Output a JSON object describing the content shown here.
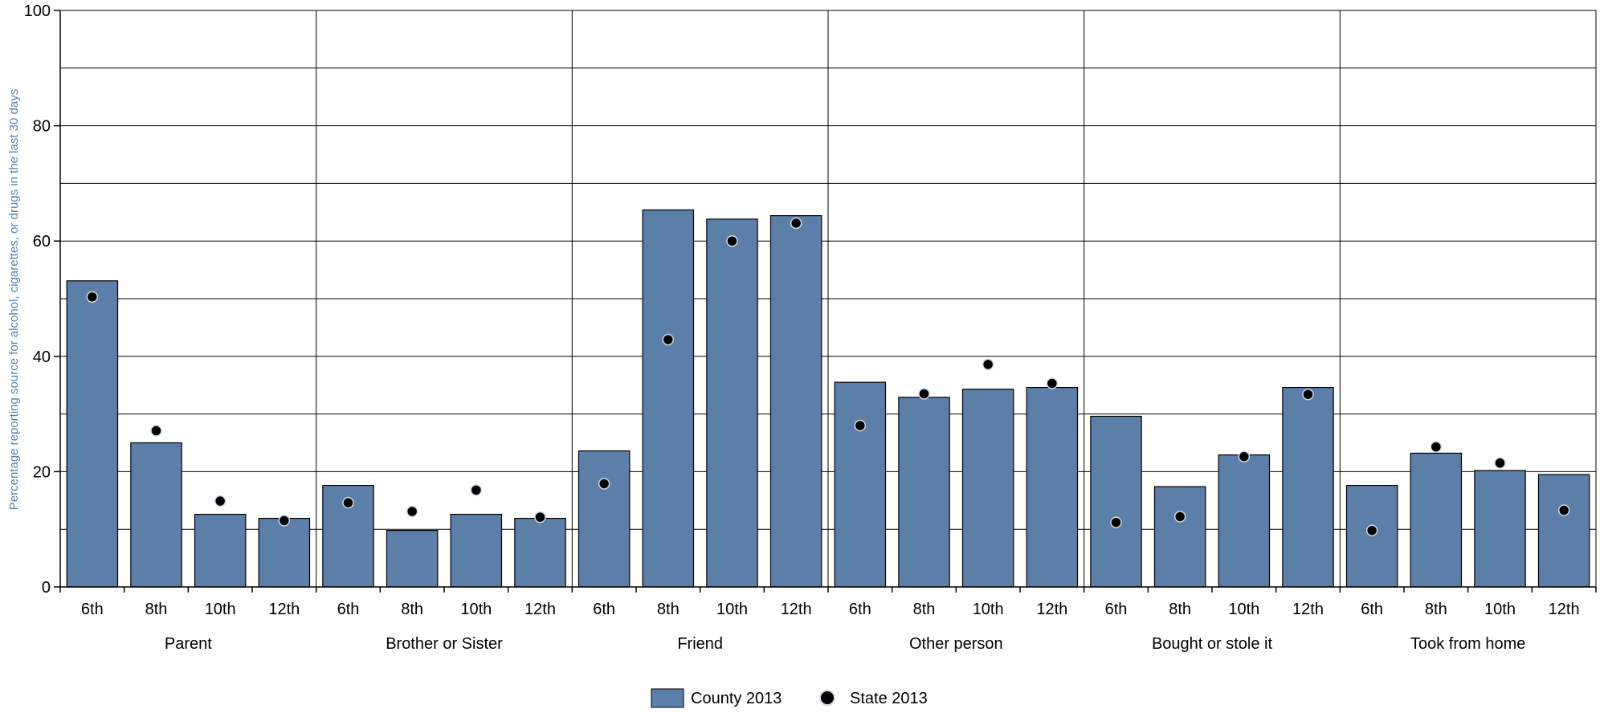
{
  "chart_data": {
    "type": "bar",
    "title": "",
    "xlabel": "",
    "ylabel": "Percentage reporting source for alcohol, cigarettes, or drugs in the last 30 days",
    "ylim": [
      0,
      100
    ],
    "yticks": [
      0,
      20,
      40,
      60,
      80,
      100
    ],
    "grid": true,
    "legend_position": "bottom",
    "grades": [
      "6th",
      "8th",
      "10th",
      "12th"
    ],
    "groups": [
      "Parent",
      "Brother or Sister",
      "Friend",
      "Other person",
      "Bought or stole it",
      "Took from home"
    ],
    "categories": [
      "Parent 6th",
      "Parent 8th",
      "Parent 10th",
      "Parent 12th",
      "Brother or Sister 6th",
      "Brother or Sister 8th",
      "Brother or Sister 10th",
      "Brother or Sister 12th",
      "Friend 6th",
      "Friend 8th",
      "Friend 10th",
      "Friend 12th",
      "Other person 6th",
      "Other person 8th",
      "Other person 10th",
      "Other person 12th",
      "Bought or stole it 6th",
      "Bought or stole it 8th",
      "Bought or stole it 10th",
      "Bought or stole it 12th",
      "Took from home 6th",
      "Took from home 8th",
      "Took from home 10th",
      "Took from home 12th"
    ],
    "series": [
      {
        "name": "County 2013",
        "kind": "bar",
        "color": "#5b7fa9",
        "values": [
          53.1,
          25.0,
          12.6,
          11.9,
          17.6,
          9.8,
          12.6,
          11.9,
          23.6,
          65.4,
          63.8,
          64.4,
          35.5,
          32.9,
          34.3,
          34.6,
          29.6,
          17.4,
          22.9,
          34.6,
          17.6,
          23.2,
          20.2,
          19.5
        ]
      },
      {
        "name": "State 2013",
        "kind": "point",
        "color": "#000000",
        "values": [
          50.3,
          27.1,
          14.9,
          11.5,
          14.6,
          13.1,
          16.8,
          12.1,
          17.9,
          42.9,
          60.0,
          63.1,
          28.0,
          33.5,
          38.6,
          35.3,
          11.2,
          12.2,
          22.6,
          33.4,
          9.8,
          24.3,
          21.5,
          13.3
        ]
      }
    ]
  }
}
